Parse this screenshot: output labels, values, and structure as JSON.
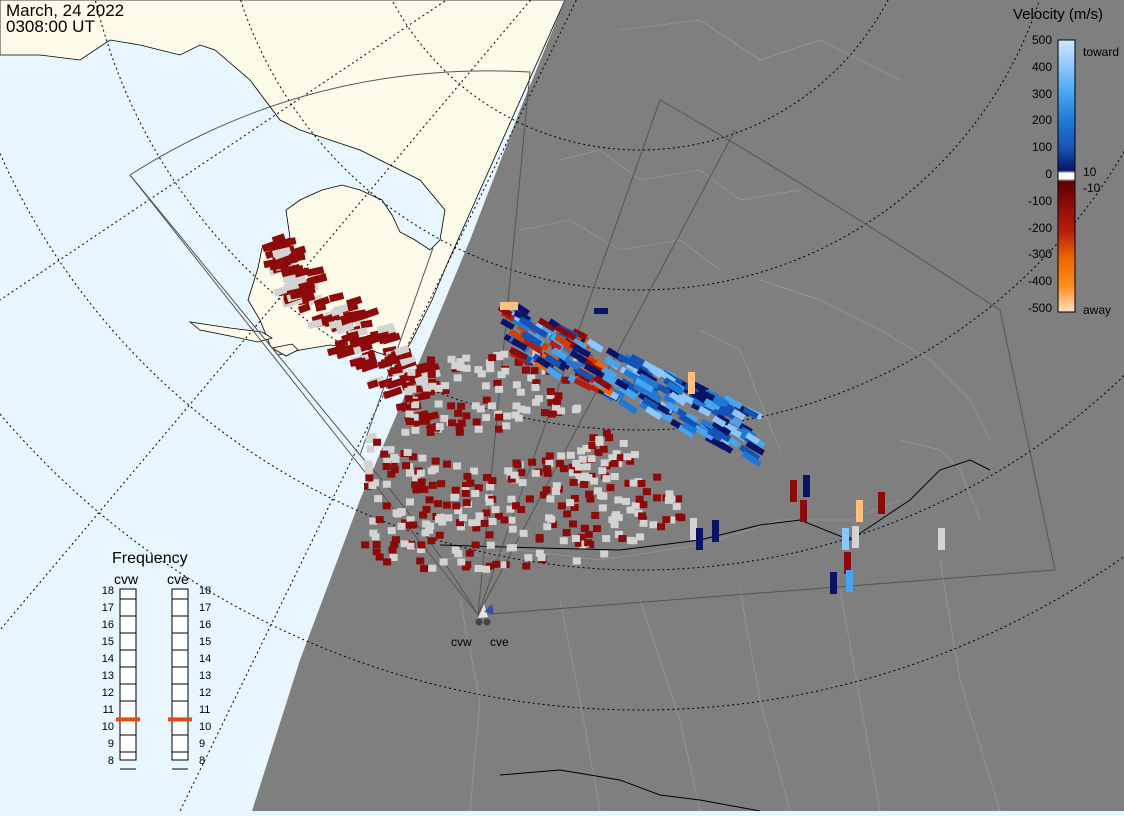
{
  "timestamp": {
    "date": "March, 24 2022",
    "time": "0308:00 UT"
  },
  "colors": {
    "ocean": "#e8f6ff",
    "land": "#fdfbe9",
    "night": "#7f7f7f",
    "night_border": "#9a9a9a",
    "fov_line": "#555555",
    "grid_line": "#000000",
    "ground_scatter": "#d3d3d3",
    "freq_marker": "#e04a14"
  },
  "legend": {
    "title": "Velocity (m/s)",
    "ticks": [
      "500",
      "400",
      "300",
      "200",
      "100",
      "0",
      "-100",
      "-200",
      "-300",
      "-400",
      "-500"
    ],
    "side_labels": {
      "toward": "toward",
      "away": "away",
      "plus10": "10",
      "minus10": "-10"
    },
    "color_stops": [
      "#cde8ff",
      "#8cc6ff",
      "#46a4f0",
      "#1f78d6",
      "#1453b4",
      "#0c2d90",
      "#0a1466",
      "#ffffff",
      "#5a0000",
      "#8c0a0a",
      "#b41e0a",
      "#d23c05",
      "#ec6400",
      "#ff8c14",
      "#ffc080",
      "#ffe0c0"
    ]
  },
  "frequency": {
    "title": "Frequency",
    "radars": [
      "cvw",
      "cve"
    ],
    "ticks": [
      "18",
      "17",
      "16",
      "15",
      "14",
      "13",
      "12",
      "11",
      "10",
      "9",
      "8"
    ],
    "values_mhz": [
      10.8,
      10.8
    ]
  },
  "sites": [
    {
      "label": "cvw"
    },
    {
      "label": "cve"
    }
  ]
}
